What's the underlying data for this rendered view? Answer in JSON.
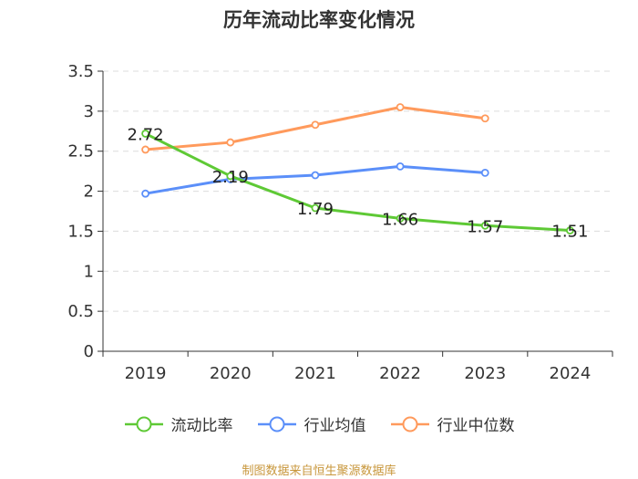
{
  "chart_data": {
    "type": "line",
    "title": "历年流动比率变化情况",
    "categories": [
      "2019",
      "2020",
      "2021",
      "2022",
      "2023",
      "2024"
    ],
    "ylim": [
      0,
      3.5
    ],
    "yticks": [
      0,
      0.5,
      1,
      1.5,
      2,
      2.5,
      3,
      3.5
    ],
    "ytick_labels": [
      "0",
      "0.5",
      "1",
      "1.5",
      "2",
      "2.5",
      "3",
      "3.5"
    ],
    "grid": true,
    "legend_position": "bottom",
    "series": [
      {
        "name": "流动比率",
        "color": "#5ec935",
        "values": [
          2.72,
          2.19,
          1.79,
          1.66,
          1.57,
          1.51
        ],
        "labels": [
          "2.72",
          "2.19",
          "1.79",
          "1.66",
          "1.57",
          "1.51"
        ]
      },
      {
        "name": "行业均值",
        "color": "#5b8ff9",
        "values": [
          1.97,
          2.15,
          2.2,
          2.31,
          2.23,
          null
        ]
      },
      {
        "name": "行业中位数",
        "color": "#ff9a5c",
        "values": [
          2.52,
          2.61,
          2.83,
          3.05,
          2.91,
          null
        ]
      }
    ]
  },
  "footer": "制图数据来自恒生聚源数据库"
}
